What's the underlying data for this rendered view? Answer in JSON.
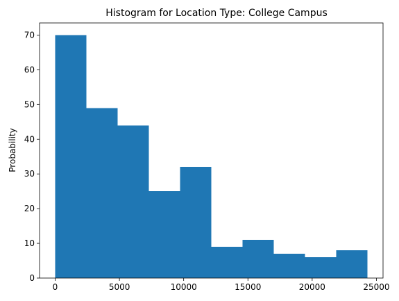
{
  "chart_data": {
    "type": "bar",
    "title": "Histogram for Location Type: College Campus",
    "xlabel": "",
    "ylabel": "Probability",
    "bin_edges": [
      0,
      2430,
      4860,
      7290,
      9720,
      12150,
      14580,
      17010,
      19440,
      21870,
      24300
    ],
    "values": [
      70,
      49,
      44,
      25,
      32,
      9,
      11,
      7,
      6,
      8
    ],
    "xlim": [
      -1215,
      25515
    ],
    "ylim": [
      0,
      73.5
    ],
    "xticks": [
      0,
      5000,
      10000,
      15000,
      20000,
      25000
    ],
    "xtick_labels": [
      "0",
      "5000",
      "10000",
      "15000",
      "20000",
      "25000"
    ],
    "yticks": [
      0,
      10,
      20,
      30,
      40,
      50,
      60,
      70
    ],
    "ytick_labels": [
      "0",
      "10",
      "20",
      "30",
      "40",
      "50",
      "60",
      "70"
    ],
    "bar_color": "#1f77b4",
    "grid": false,
    "legend": "none"
  }
}
